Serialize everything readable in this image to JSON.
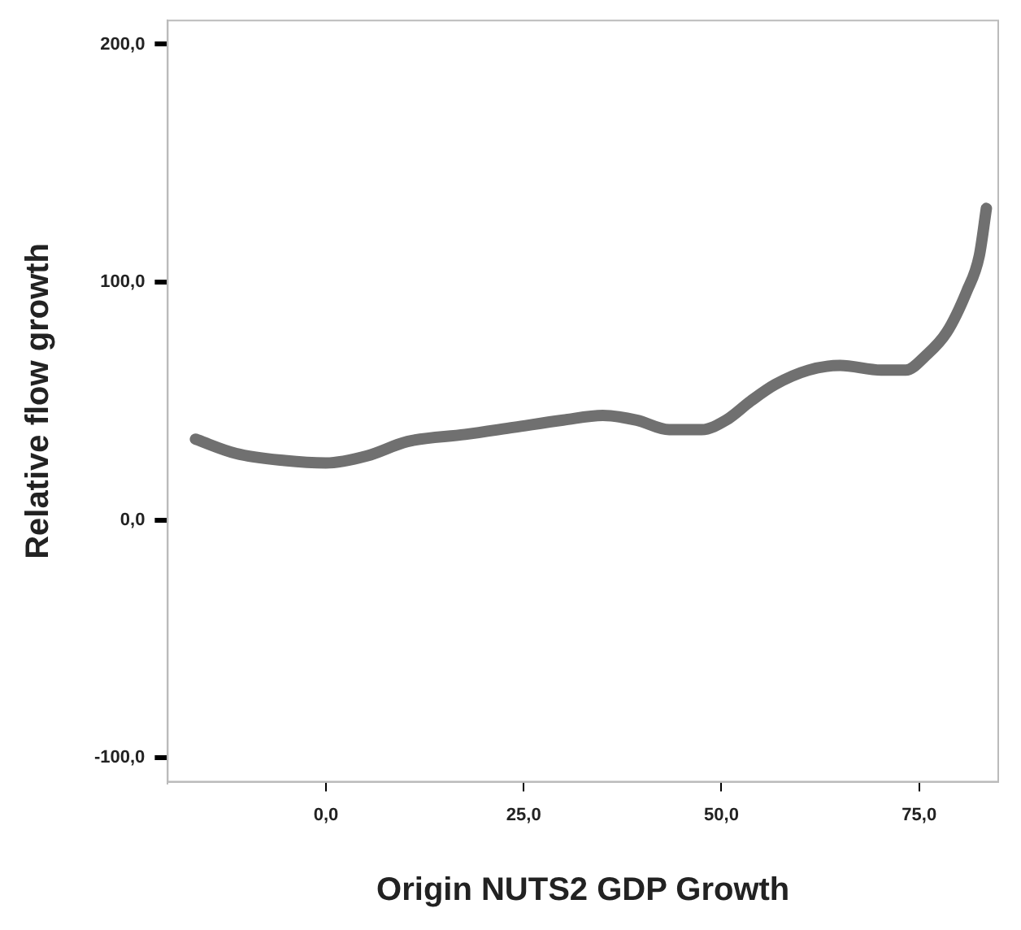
{
  "chart_data": {
    "type": "line",
    "xlabel": "Origin NUTS2 GDP Growth",
    "ylabel": "Relative flow growth",
    "xlim": [
      -20,
      85
    ],
    "ylim": [
      -110,
      210
    ],
    "xticks": [
      {
        "value": 0,
        "label": "0,0"
      },
      {
        "value": 25,
        "label": "25,0"
      },
      {
        "value": 50,
        "label": "50,0"
      },
      {
        "value": 75,
        "label": "75,0"
      }
    ],
    "yticks": [
      {
        "value": -100,
        "label": "-100,0"
      },
      {
        "value": 0,
        "label": "0,0"
      },
      {
        "value": 100,
        "label": "100,0"
      },
      {
        "value": 200,
        "label": "200,0"
      }
    ],
    "grid": false,
    "legend": false,
    "marker": "none",
    "line_style": "solid",
    "series": [
      {
        "color": "#707070",
        "x": [
          -16.5,
          -11.4,
          -5.2,
          0,
          5.2,
          10.3,
          17.6,
          23.8,
          30,
          35,
          39.3,
          43.4,
          47.5,
          50.6,
          53.7,
          56.8,
          61,
          65,
          70.2,
          73.3,
          75.8,
          78.5,
          81,
          82.6,
          83.5
        ],
        "values": [
          34,
          28,
          25,
          24,
          27,
          33,
          36,
          39,
          42,
          44,
          42,
          38,
          38,
          42,
          50,
          57,
          63,
          65,
          63,
          63,
          69,
          79,
          96,
          111,
          131
        ]
      }
    ]
  }
}
